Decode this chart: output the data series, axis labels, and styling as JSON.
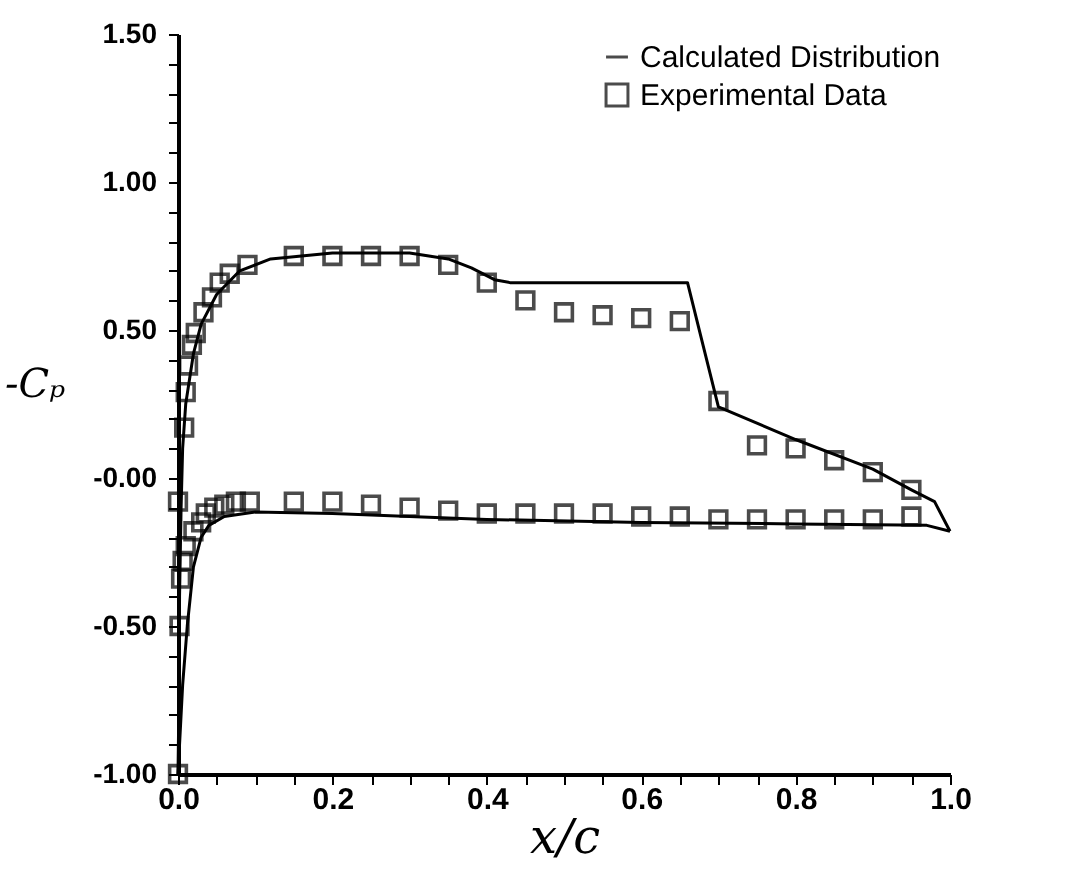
{
  "chart_data": {
    "type": "line",
    "xlabel": "x/c",
    "ylabel": "-Cₚ",
    "xlim": [
      0,
      1
    ],
    "ylim": [
      -1,
      1.5
    ],
    "xticks": [
      {
        "value": 0,
        "label": "0.0"
      },
      {
        "value": 0.05,
        "label": null
      },
      {
        "value": 0.1,
        "label": null
      },
      {
        "value": 0.15,
        "label": null
      },
      {
        "value": 0.2,
        "label": "0.2"
      },
      {
        "value": 0.25,
        "label": null
      },
      {
        "value": 0.3,
        "label": null
      },
      {
        "value": 0.35,
        "label": null
      },
      {
        "value": 0.4,
        "label": "0.4"
      },
      {
        "value": 0.45,
        "label": null
      },
      {
        "value": 0.5,
        "label": null
      },
      {
        "value": 0.55,
        "label": null
      },
      {
        "value": 0.6,
        "label": "0.6"
      },
      {
        "value": 0.65,
        "label": null
      },
      {
        "value": 0.7,
        "label": null
      },
      {
        "value": 0.75,
        "label": null
      },
      {
        "value": 0.8,
        "label": "0.8"
      },
      {
        "value": 0.85,
        "label": null
      },
      {
        "value": 0.9,
        "label": null
      },
      {
        "value": 0.95,
        "label": null
      },
      {
        "value": 1,
        "label": "1.0"
      }
    ],
    "yticks": [
      {
        "value": -1,
        "label": "-1.00"
      },
      {
        "value": -0.9,
        "label": null
      },
      {
        "value": -0.8,
        "label": null
      },
      {
        "value": -0.7,
        "label": null
      },
      {
        "value": -0.6,
        "label": null
      },
      {
        "value": -0.5,
        "label": "-0.50"
      },
      {
        "value": -0.4,
        "label": null
      },
      {
        "value": -0.3,
        "label": null
      },
      {
        "value": -0.2,
        "label": null
      },
      {
        "value": -0.1,
        "label": null
      },
      {
        "value": 0,
        "label": "-0.00"
      },
      {
        "value": 0.1,
        "label": null
      },
      {
        "value": 0.2,
        "label": null
      },
      {
        "value": 0.3,
        "label": null
      },
      {
        "value": 0.4,
        "label": null
      },
      {
        "value": 0.5,
        "label": "0.50"
      },
      {
        "value": 0.6,
        "label": null
      },
      {
        "value": 0.7,
        "label": null
      },
      {
        "value": 0.8,
        "label": null
      },
      {
        "value": 0.9,
        "label": null
      },
      {
        "value": 1,
        "label": "1.00"
      },
      {
        "value": 1.1,
        "label": null
      },
      {
        "value": 1.2,
        "label": null
      },
      {
        "value": 1.3,
        "label": null
      },
      {
        "value": 1.4,
        "label": null
      },
      {
        "value": 1.5,
        "label": "1.50"
      }
    ],
    "grid": false,
    "legend": "top right",
    "series": [
      {
        "name": "Calculated Distribution",
        "type": "line",
        "line_style": "solid",
        "color": "#000000",
        "x": [
          0.0,
          0.001,
          0.002,
          0.004,
          0.006,
          0.01,
          0.02,
          0.03,
          0.05,
          0.08,
          0.12,
          0.2,
          0.3,
          0.35,
          0.38,
          0.41,
          0.43,
          0.66,
          0.68,
          0.7,
          0.8,
          0.9,
          0.95,
          0.98,
          1.0
        ],
        "values": [
          -1.0,
          -0.8,
          -0.4,
          -0.1,
          0.1,
          0.25,
          0.42,
          0.52,
          0.62,
          0.7,
          0.74,
          0.76,
          0.76,
          0.74,
          0.71,
          0.67,
          0.66,
          0.66,
          0.45,
          0.24,
          0.13,
          0.03,
          -0.04,
          -0.08,
          -0.18
        ]
      },
      {
        "type": "line",
        "line_style": "solid",
        "color": "#000000",
        "x": [
          0.0,
          0.002,
          0.006,
          0.012,
          0.02,
          0.03,
          0.04,
          0.06,
          0.1,
          0.2,
          0.4,
          0.6,
          0.8,
          0.97,
          1.0
        ],
        "values": [
          -1.0,
          -0.9,
          -0.7,
          -0.5,
          -0.3,
          -0.2,
          -0.16,
          -0.13,
          -0.115,
          -0.12,
          -0.14,
          -0.15,
          -0.155,
          -0.16,
          -0.18
        ]
      },
      {
        "name": "Experimental Data",
        "type": "scatter",
        "marker": "square",
        "color": "#000000",
        "x": [
          0.0,
          0.008,
          0.01,
          0.013,
          0.018,
          0.023,
          0.033,
          0.044,
          0.054,
          0.067,
          0.09,
          0.15,
          0.2,
          0.25,
          0.3,
          0.35,
          0.4,
          0.45,
          0.5,
          0.55,
          0.6,
          0.65,
          0.7,
          0.75,
          0.8,
          0.85,
          0.9,
          0.95,
          0.0,
          0.002,
          0.004,
          0.006,
          0.01,
          0.02,
          0.03,
          0.036,
          0.047,
          0.06,
          0.075,
          0.093,
          0.15,
          0.2,
          0.25,
          0.3,
          0.35,
          0.4,
          0.45,
          0.5,
          0.55,
          0.6,
          0.65,
          0.7,
          0.75,
          0.8,
          0.85,
          0.9,
          0.95
        ],
        "values": [
          -0.08,
          0.17,
          0.29,
          0.38,
          0.45,
          0.49,
          0.56,
          0.61,
          0.66,
          0.69,
          0.72,
          0.75,
          0.75,
          0.75,
          0.75,
          0.72,
          0.66,
          0.6,
          0.56,
          0.55,
          0.54,
          0.53,
          0.26,
          0.11,
          0.1,
          0.06,
          0.02,
          -0.04,
          -1.0,
          -0.5,
          -0.34,
          -0.28,
          -0.23,
          -0.18,
          -0.15,
          -0.12,
          -0.1,
          -0.09,
          -0.08,
          -0.08,
          -0.08,
          -0.08,
          -0.09,
          -0.1,
          -0.11,
          -0.12,
          -0.12,
          -0.12,
          -0.12,
          -0.13,
          -0.13,
          -0.14,
          -0.14,
          -0.14,
          -0.14,
          -0.14,
          -0.13
        ]
      }
    ]
  }
}
